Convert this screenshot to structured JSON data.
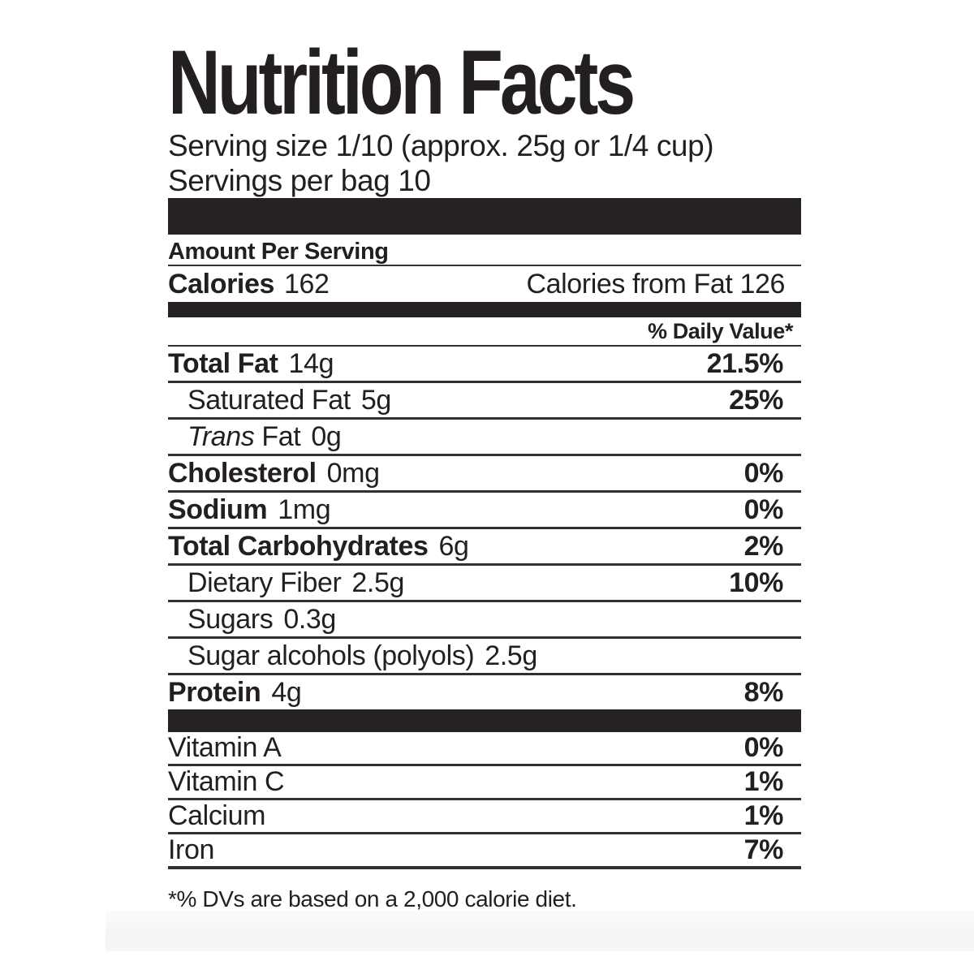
{
  "label": {
    "title": "Nutrition Facts",
    "serving_size_line": "Serving size 1/10 (approx. 25g or 1/4 cup)",
    "servings_per_line": "Servings per bag 10",
    "amount_per_serving": "Amount Per Serving",
    "calories_label": "Calories",
    "calories_value": "162",
    "calories_from_fat": "Calories from Fat 126",
    "daily_value_header": "% Daily Value*",
    "rows": [
      {
        "name": "Total Fat",
        "amount": "14g",
        "dv": "21.5%"
      },
      {
        "name": "Saturated Fat",
        "amount": "5g",
        "dv": "25%"
      },
      {
        "italic": "Trans",
        "name": "Fat",
        "amount": "0g",
        "dv": ""
      },
      {
        "name": "Cholesterol",
        "amount": "0mg",
        "dv": "0%"
      },
      {
        "name": "Sodium",
        "amount": "1mg",
        "dv": "0%"
      },
      {
        "name": "Total Carbohydrates",
        "amount": "6g",
        "dv": "2%"
      },
      {
        "name": "Dietary Fiber",
        "amount": "2.5g",
        "dv": "10%"
      },
      {
        "name": "Sugars",
        "amount": "0.3g",
        "dv": ""
      },
      {
        "name": "Sugar alcohols (polyols)",
        "amount": "2.5g",
        "dv": ""
      },
      {
        "name": "Protein",
        "amount": "4g",
        "dv": "8%"
      }
    ],
    "micronutrients": [
      {
        "name": "Vitamin A",
        "dv": "0%"
      },
      {
        "name": "Vitamin C",
        "dv": "1%"
      },
      {
        "name": "Calcium",
        "dv": "1%"
      },
      {
        "name": "Iron",
        "dv": "7%"
      }
    ],
    "footnote": "*% DVs are based on a 2,000 calorie diet.",
    "colors": {
      "text": "#231f20",
      "separator_bar": "#262223"
    }
  }
}
